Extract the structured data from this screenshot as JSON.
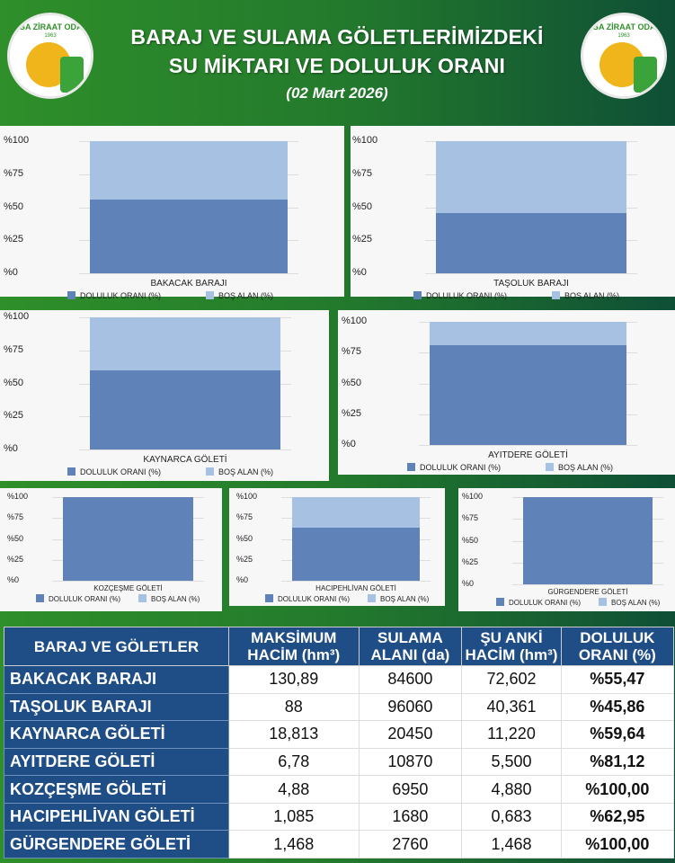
{
  "header": {
    "logo_text": "BİGA ZİRAAT ODASI",
    "logo_year": "1963",
    "title_line1": "BARAJ VE SULAMA GÖLETLERİMİZDEKİ",
    "title_line2": "SU MİKTARI VE DOLULUK ORANI",
    "date": "(02 Mart 2026)"
  },
  "colors": {
    "filled": "#5f83b8",
    "empty": "#a6c1e2",
    "table_header": "#1f4d86"
  },
  "chart_data": [
    {
      "type": "bar",
      "stacked": true,
      "category": "BAKACAK BARAJI",
      "series": [
        {
          "name": "DOLULUK ORANI (%)",
          "value": 55.47
        },
        {
          "name": "BOŞ ALAN (%)",
          "value": 44.53
        }
      ],
      "yticks": [
        "%100",
        "%75",
        "%50",
        "%25",
        "%0"
      ],
      "ylim": [
        0,
        100
      ],
      "legend": "bottom"
    },
    {
      "type": "bar",
      "stacked": true,
      "category": "TAŞOLUK BARAJI",
      "series": [
        {
          "name": "DOLULUK ORANI (%)",
          "value": 45.86
        },
        {
          "name": "BOŞ ALAN (%)",
          "value": 54.14
        }
      ],
      "yticks": [
        "%100",
        "%75",
        "%50",
        "%25",
        "%0"
      ],
      "ylim": [
        0,
        100
      ],
      "legend": "bottom"
    },
    {
      "type": "bar",
      "stacked": true,
      "category": "KAYNARCA GÖLETİ",
      "series": [
        {
          "name": "DOLULUK ORANI (%)",
          "value": 59.64
        },
        {
          "name": "BOŞ ALAN (%)",
          "value": 40.36
        }
      ],
      "yticks": [
        "%100",
        "%75",
        "%50",
        "%25",
        "%0"
      ],
      "ylim": [
        0,
        100
      ],
      "legend": "bottom"
    },
    {
      "type": "bar",
      "stacked": true,
      "category": "AYITDERE GÖLETİ",
      "series": [
        {
          "name": "DOLULUK ORANI (%)",
          "value": 81.12
        },
        {
          "name": "BOŞ ALAN (%)",
          "value": 18.88
        }
      ],
      "yticks": [
        "%100",
        "%75",
        "%50",
        "%25",
        "%0"
      ],
      "ylim": [
        0,
        100
      ],
      "legend": "bottom"
    },
    {
      "type": "bar",
      "stacked": true,
      "category": "KOZÇEŞME GÖLETİ",
      "series": [
        {
          "name": "DOLULUK ORANI (%)",
          "value": 100
        },
        {
          "name": "BOŞ ALAN (%)",
          "value": 0
        }
      ],
      "yticks": [
        "%100",
        "%75",
        "%50",
        "%25",
        "%0"
      ],
      "ylim": [
        0,
        100
      ],
      "legend": "bottom"
    },
    {
      "type": "bar",
      "stacked": true,
      "category": "HACIPEHLİVAN GÖLETİ",
      "series": [
        {
          "name": "DOLULUK ORANI (%)",
          "value": 62.95
        },
        {
          "name": "BOŞ ALAN (%)",
          "value": 37.05
        }
      ],
      "yticks": [
        "%100",
        "%75",
        "%50",
        "%25",
        "%0"
      ],
      "ylim": [
        0,
        100
      ],
      "legend": "bottom"
    },
    {
      "type": "bar",
      "stacked": true,
      "category": "GÜRGENDERE GÖLETİ",
      "series": [
        {
          "name": "DOLULUK ORANI (%)",
          "value": 100
        },
        {
          "name": "BOŞ ALAN (%)",
          "value": 0
        }
      ],
      "yticks": [
        "%100",
        "%75",
        "%50",
        "%25",
        "%0"
      ],
      "ylim": [
        0,
        100
      ],
      "legend": "bottom"
    }
  ],
  "table": {
    "headers": [
      "BARAJ VE GÖLETLER",
      "MAKSİMUM HACİM (hm³)",
      "SULAMA ALANI (da)",
      "ŞU ANKİ HACİM (hm³)",
      "DOLULUK ORANI (%)"
    ],
    "rows": [
      [
        "BAKACAK BARAJI",
        "130,89",
        "84600",
        "72,602",
        "%55,47"
      ],
      [
        "TAŞOLUK BARAJI",
        "88",
        "96060",
        "40,361",
        "%45,86"
      ],
      [
        "KAYNARCA GÖLETİ",
        "18,813",
        "20450",
        "11,220",
        "%59,64"
      ],
      [
        "AYITDERE GÖLETİ",
        "6,78",
        "10870",
        "5,500",
        "%81,12"
      ],
      [
        "KOZÇEŞME GÖLETİ",
        "4,88",
        "6950",
        "4,880",
        "%100,00"
      ],
      [
        "HACIPEHLİVAN GÖLETİ",
        "1,085",
        "1680",
        "0,683",
        "%62,95"
      ],
      [
        "GÜRGENDERE GÖLETİ",
        "1,468",
        "2760",
        "1,468",
        "%100,00"
      ]
    ]
  }
}
